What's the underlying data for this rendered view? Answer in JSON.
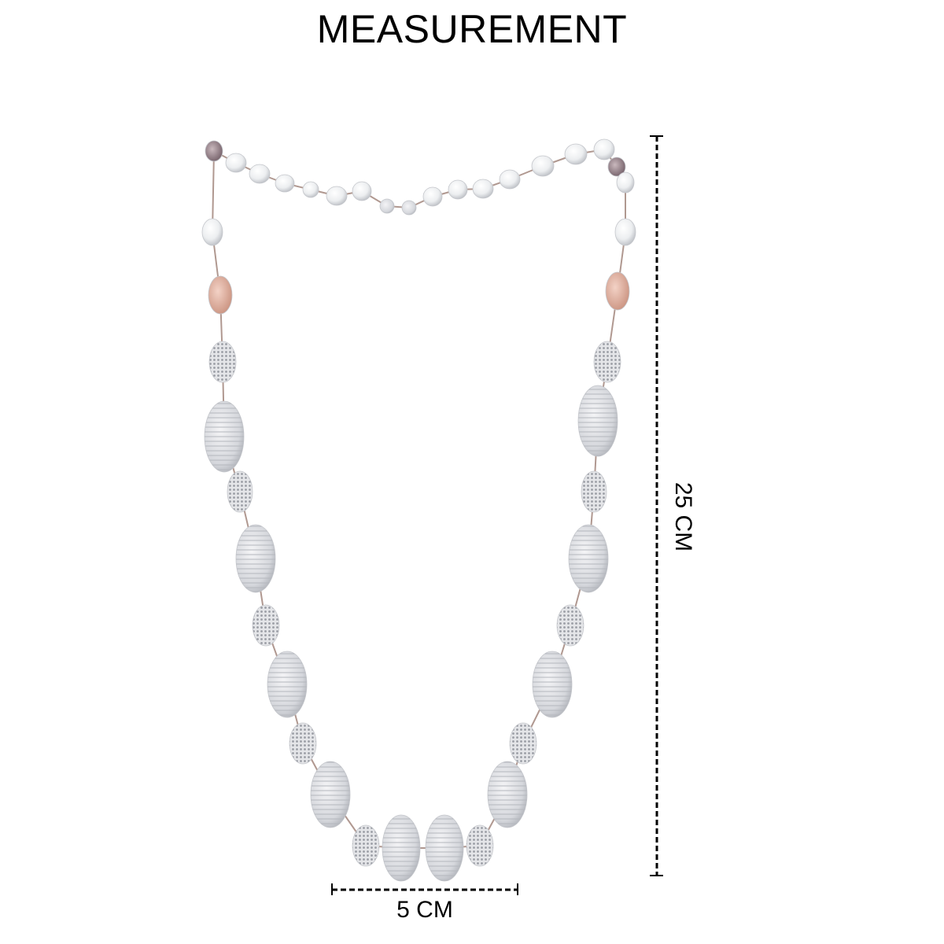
{
  "title": "MEASUREMENT",
  "dimensions": {
    "width_label": "5 CM",
    "height_label": "25 CM"
  },
  "product_image": "silver beaded necklace with pearls"
}
